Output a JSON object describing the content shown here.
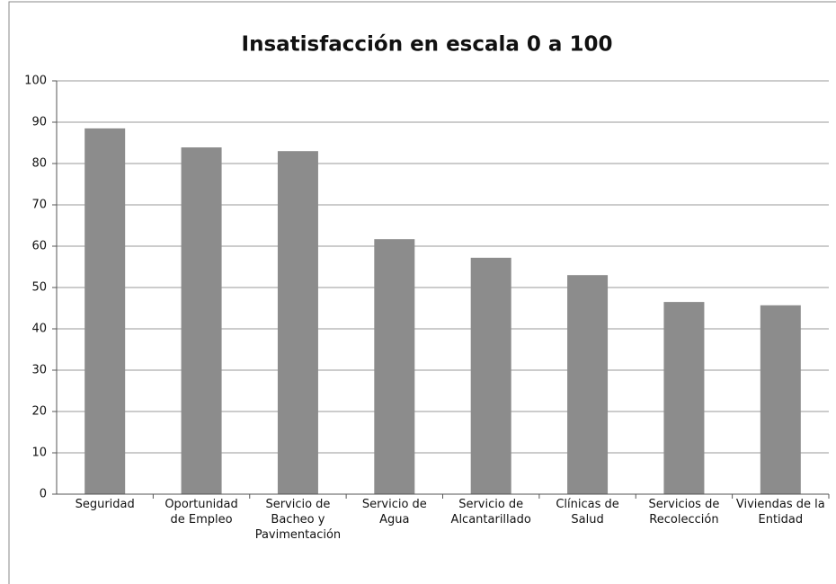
{
  "chart_data": {
    "type": "bar",
    "title": "Insatisfacción en escala 0 a 100",
    "categories": [
      "Seguridad",
      "Oportunidad de Empleo",
      "Servicio de Bacheo y Pavimentación",
      "Servicio de Agua",
      "Servicio de Alcantarillado",
      "Clínicas de Salud",
      "Servicios de Recolección",
      "Viviendas de la Entidad"
    ],
    "values": [
      88.5,
      83.9,
      83,
      61.7,
      57.2,
      53,
      46.5,
      45.7
    ],
    "color": "#8c8c8c",
    "ylim": [
      0,
      100
    ],
    "yticks": [
      0,
      10,
      20,
      30,
      40,
      50,
      60,
      70,
      80,
      90,
      100
    ],
    "grid": true
  }
}
